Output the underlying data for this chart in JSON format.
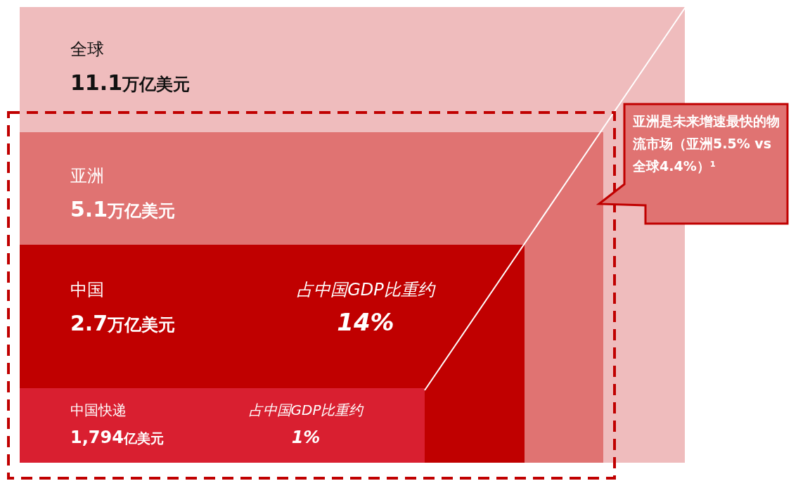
{
  "chart_data": {
    "type": "other",
    "categories": [
      "全球",
      "亚洲",
      "中国",
      "中国快递"
    ],
    "values": [
      11.1,
      5.1,
      2.7,
      1794
    ],
    "value_labels": [
      "11.1万亿美元",
      "5.1万亿美元",
      "2.7万亿美元",
      "1,794亿美元"
    ],
    "colors": [
      "#efbcbd",
      "#e07372",
      "#c00000",
      "#d91f30"
    ],
    "annotations": [
      "占中国GDP比重约\n14%",
      "占中国GDP比重约\n1%",
      "亚洲是未来增速最快的物流市场（亚洲5.5% vs 全球4.4%）¹"
    ]
  }
}
